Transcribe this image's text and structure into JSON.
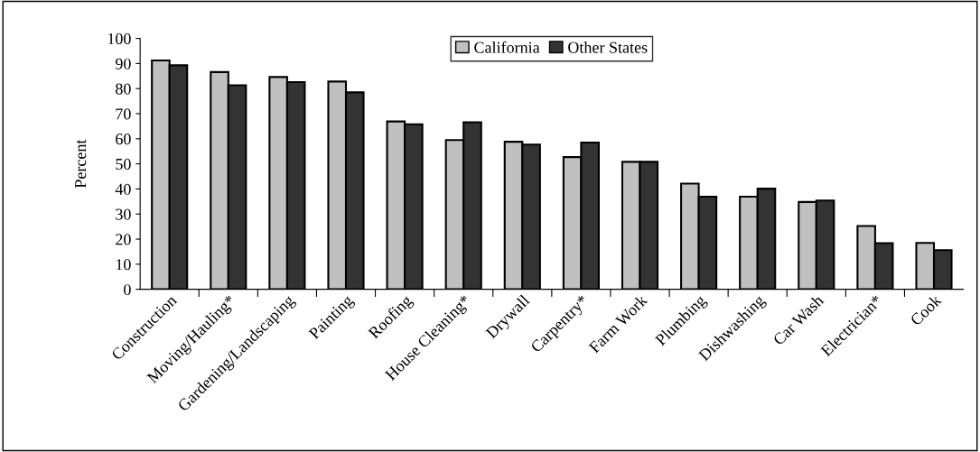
{
  "chart_data": {
    "type": "bar",
    "ylabel": "Percent",
    "categories": [
      "Construction",
      "Moving/Hauling*",
      "Gardening/Landscaping",
      "Painting",
      "Roofing",
      "House Cleaning*",
      "Drywall",
      "Carpentry*",
      "Farm Work",
      "Plumbing",
      "Dishwashing",
      "Car Wash",
      "Electrician*",
      "Cook"
    ],
    "series": [
      {
        "name": "California",
        "color": "#c0c0c0",
        "values": [
          91.2,
          86.6,
          84.6,
          82.8,
          66.9,
          59.5,
          58.8,
          52.7,
          50.8,
          42.1,
          36.9,
          34.8,
          25.2,
          18.5
        ]
      },
      {
        "name": "Other States",
        "color": "#333333",
        "values": [
          89.3,
          81.3,
          82.6,
          78.5,
          65.8,
          66.6,
          57.7,
          58.5,
          50.8,
          36.9,
          40.1,
          35.4,
          18.4,
          15.6
        ]
      }
    ],
    "ylim": [
      0,
      100
    ],
    "yticks": [
      0,
      10,
      20,
      30,
      40,
      50,
      60,
      70,
      80,
      90,
      100
    ],
    "grid": false,
    "legend": "top"
  }
}
